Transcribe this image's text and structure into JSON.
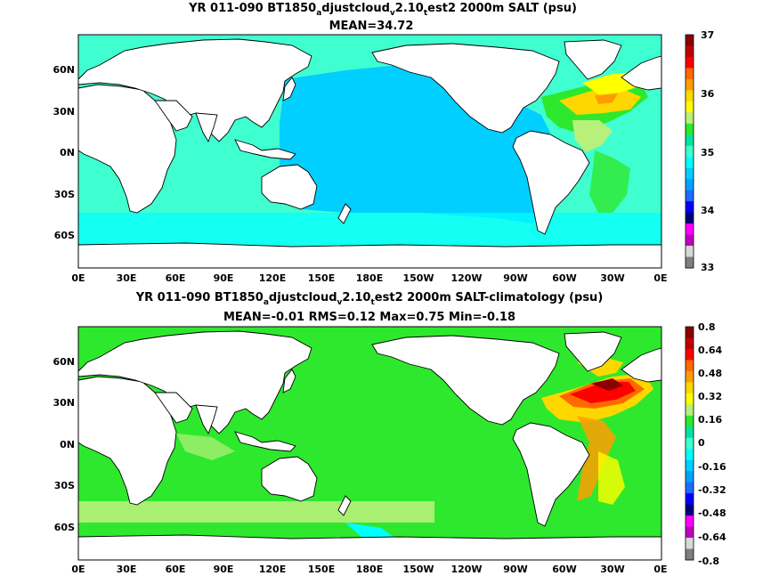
{
  "panels": [
    {
      "title_parts": [
        "YR 011-090 BT1850",
        "a",
        "djustcloud",
        "v",
        "2.10",
        "t",
        "est2 2000m SALT (psu)"
      ],
      "stats": "MEAN=34.72",
      "colorbar": {
        "ticks": [
          "37",
          "36",
          "35",
          "34",
          "33"
        ],
        "colors": [
          "#8b0000",
          "#c00000",
          "#ff0000",
          "#ff6a00",
          "#ff9d00",
          "#ffd700",
          "#ffff00",
          "#b7f07a",
          "#2ee82e",
          "#00e5a0",
          "#3fffd0",
          "#00ffff",
          "#00cfff",
          "#00a2ff",
          "#1e6cff",
          "#0000ff",
          "#00007a",
          "#ff00ff",
          "#c000c0",
          "#d8d8d8",
          "#7f7f7f"
        ]
      }
    },
    {
      "title_parts": [
        "YR 011-090 BT1850",
        "a",
        "djustcloud",
        "v",
        "2.10",
        "t",
        "est2 2000m SALT-climatology (psu)"
      ],
      "stats": "MEAN=-0.01   RMS=0.12   Max=0.75   Min=-0.18",
      "colorbar": {
        "ticks": [
          "0.8",
          "0.64",
          "0.48",
          "0.32",
          "0.16",
          "0",
          "-0.16",
          "-0.32",
          "-0.48",
          "-0.64",
          "-0.8"
        ],
        "colors": [
          "#8b0000",
          "#c00000",
          "#ff0000",
          "#ff6a00",
          "#ff9d00",
          "#ffd700",
          "#ffff00",
          "#b7f07a",
          "#2ee82e",
          "#00e5a0",
          "#3fffd0",
          "#00ffff",
          "#00cfff",
          "#00a2ff",
          "#1e6cff",
          "#0000ff",
          "#00007a",
          "#ff00ff",
          "#c000c0",
          "#d8d8d8",
          "#7f7f7f"
        ]
      }
    }
  ],
  "axes": {
    "x_ticks": [
      "0E",
      "30E",
      "60E",
      "90E",
      "120E",
      "150E",
      "180E",
      "150W",
      "120W",
      "90W",
      "60W",
      "30W",
      "0E"
    ],
    "y_ticks": [
      "60N",
      "30N",
      "0N",
      "30S",
      "60S"
    ]
  }
}
